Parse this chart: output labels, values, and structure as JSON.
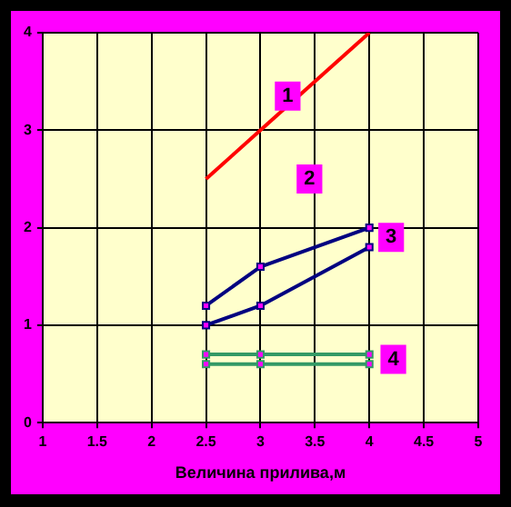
{
  "chart_data": {
    "type": "line",
    "xlabel": "Величина прилива,м",
    "x": [
      2.5,
      3,
      4
    ],
    "series": [
      {
        "color": "#ff0000",
        "values": [
          2.5,
          3,
          4
        ],
        "marker": "none"
      },
      {
        "color": "#000080",
        "values": [
          1.2,
          1.6,
          2.0
        ],
        "marker": "square"
      },
      {
        "color": "#000080",
        "values": [
          1.0,
          1.2,
          1.8
        ],
        "marker": "square"
      },
      {
        "color": "#339966",
        "values": [
          0.7,
          0.7,
          0.7
        ],
        "marker": "square"
      },
      {
        "color": "#339966",
        "values": [
          0.6,
          0.6,
          0.6
        ],
        "marker": "square"
      }
    ],
    "xlim": [
      1,
      5
    ],
    "xticks": [
      1,
      1.5,
      2,
      2.5,
      3,
      3.5,
      4,
      4.5,
      5
    ],
    "ylim": [
      0,
      4
    ],
    "yticks": [
      0,
      1,
      2,
      3,
      4
    ],
    "grid": true,
    "legend": false,
    "annotations": [
      {
        "text": "1",
        "x": 3.25,
        "y": 3.35
      },
      {
        "text": "2",
        "x": 3.45,
        "y": 2.5
      },
      {
        "text": "3",
        "x": 4.2,
        "y": 1.9
      },
      {
        "text": "4",
        "x": 4.22,
        "y": 0.65
      }
    ]
  }
}
